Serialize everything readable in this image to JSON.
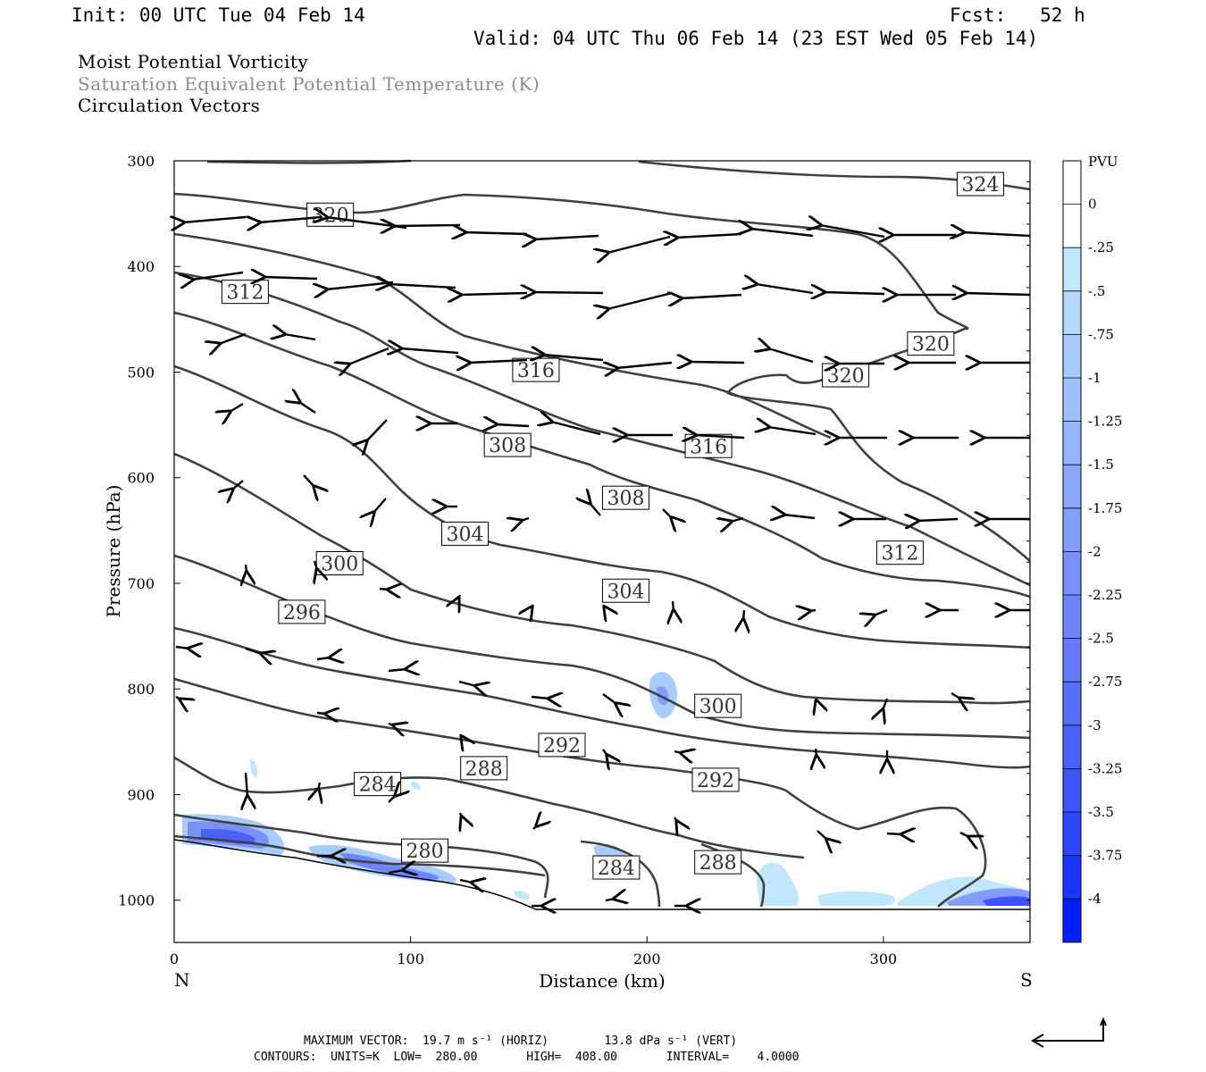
{
  "header": {
    "init": "Init: 00 UTC Tue 04 Feb 14",
    "fcst": "Fcst:   52 h",
    "valid": "Valid: 04 UTC Thu 06 Feb 14 (23 EST Wed 05 Feb 14)"
  },
  "fields": {
    "line1": "Moist Potential Vorticity",
    "line2": "Saturation Equivalent Potential Temperature (K)",
    "line3": "Circulation Vectors"
  },
  "footer": {
    "max_vector_line": "MAXIMUM VECTOR:  19.7 m s⁻¹ (HORIZ)        13.8 dPa s⁻¹ (VERT)",
    "contours_line": "CONTOURS:  UNITS=K  LOW=  280.00       HIGH=  408.00       INTERVAL=    4.0000"
  },
  "chart_data": {
    "type": "contour",
    "xlabel": "Distance (km)",
    "ylabel": "Pressure (hPa)",
    "x_ticks": [
      0,
      100,
      200,
      300
    ],
    "y_ticks": [
      300,
      400,
      500,
      600,
      700,
      800,
      900,
      1000
    ],
    "xlim": [
      0,
      362
    ],
    "ylim": [
      1040,
      300
    ],
    "endpoints": {
      "left": "N",
      "right": "S"
    },
    "colorbar": {
      "title": "PVU",
      "labels": [
        "0",
        "-.25",
        "-.5",
        "-.75",
        "-1",
        "-1.25",
        "-1.5",
        "-1.75",
        "-2",
        "-2.25",
        "-2.5",
        "-2.75",
        "-3",
        "-3.25",
        "-3.5",
        "-3.75",
        "-4"
      ],
      "colors": [
        "#ffffff",
        "#ffffff",
        "#bfe7ff",
        "#b3d9ff",
        "#a8ccff",
        "#9ec0ff",
        "#95b4ff",
        "#8ba8ff",
        "#829cff",
        "#7891ff",
        "#6e85ff",
        "#6379ff",
        "#576dff",
        "#4a60ff",
        "#3c53ff",
        "#2d45ff",
        "#1a35ff",
        "#0020ff"
      ]
    },
    "contour_labels": [
      {
        "value": "324",
        "x": 341,
        "p": 322
      },
      {
        "value": "320",
        "x": 66,
        "p": 351
      },
      {
        "value": "312",
        "x": 30,
        "p": 424
      },
      {
        "value": "316",
        "x": 153,
        "p": 498
      },
      {
        "value": "320",
        "x": 320,
        "p": 473
      },
      {
        "value": "320",
        "x": 284,
        "p": 503
      },
      {
        "value": "308",
        "x": 141,
        "p": 569
      },
      {
        "value": "316",
        "x": 226,
        "p": 570
      },
      {
        "value": "308",
        "x": 191,
        "p": 619
      },
      {
        "value": "304",
        "x": 123,
        "p": 653
      },
      {
        "value": "312",
        "x": 307,
        "p": 671
      },
      {
        "value": "300",
        "x": 70,
        "p": 681
      },
      {
        "value": "304",
        "x": 191,
        "p": 707
      },
      {
        "value": "296",
        "x": 54,
        "p": 727
      },
      {
        "value": "300",
        "x": 230,
        "p": 816
      },
      {
        "value": "292",
        "x": 164,
        "p": 853
      },
      {
        "value": "288",
        "x": 131,
        "p": 875
      },
      {
        "value": "292",
        "x": 229,
        "p": 886
      },
      {
        "value": "284",
        "x": 86,
        "p": 890
      },
      {
        "value": "280",
        "x": 106,
        "p": 953
      },
      {
        "value": "284",
        "x": 187,
        "p": 969
      },
      {
        "value": "288",
        "x": 230,
        "p": 964
      }
    ]
  }
}
